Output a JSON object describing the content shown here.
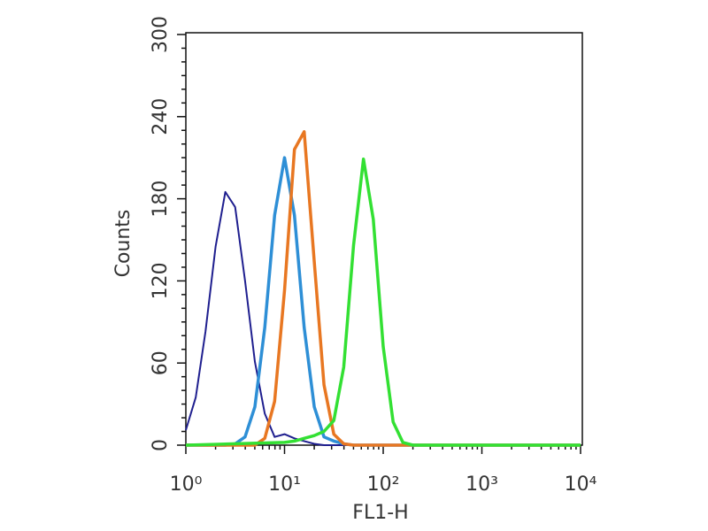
{
  "chart_data": {
    "type": "line",
    "xlabel": "FL1-H",
    "ylabel": "Counts",
    "xscale": "log",
    "xlim": [
      1,
      10000
    ],
    "xticks": [
      {
        "value": 1,
        "label": "10⁰"
      },
      {
        "value": 10,
        "label": "10¹"
      },
      {
        "value": 100,
        "label": "10²"
      },
      {
        "value": 1000,
        "label": "10³"
      },
      {
        "value": 10000,
        "label": "10⁴"
      }
    ],
    "ylim": [
      0,
      300
    ],
    "yticks": [
      0,
      60,
      120,
      180,
      240,
      300
    ],
    "series": [
      {
        "color": "#1f1f8f",
        "x": [
          1,
          1.26,
          1.58,
          2,
          2.51,
          3.16,
          3.98,
          5.01,
          6.31,
          7.94,
          10,
          12.6,
          15.8,
          20,
          25.1,
          10000
        ],
        "values": [
          11,
          35,
          83,
          145,
          185,
          174,
          120,
          61,
          23,
          6,
          8,
          5,
          3,
          1,
          0,
          0
        ]
      },
      {
        "color": "#2e8fd6",
        "x": [
          1,
          2.51,
          3.16,
          3.98,
          5.01,
          6.31,
          7.94,
          10,
          12.6,
          15.8,
          20,
          25.1,
          31.6,
          39.8,
          50.1,
          10000
        ],
        "values": [
          0,
          0,
          1,
          6,
          28,
          86,
          168,
          210,
          168,
          86,
          28,
          6,
          3,
          1,
          0,
          0
        ]
      },
      {
        "color": "#e87722",
        "x": [
          1,
          3.98,
          5.01,
          6.31,
          7.94,
          10,
          12.6,
          15.8,
          20,
          25.1,
          31.6,
          39.8,
          50.1,
          10000
        ],
        "values": [
          0,
          0,
          0,
          5,
          32,
          113,
          216,
          229,
          134,
          44,
          8,
          1,
          0,
          0
        ]
      },
      {
        "color": "#33e033",
        "x": [
          1,
          10,
          12.6,
          15.8,
          20,
          25.1,
          31.6,
          39.8,
          50.1,
          63.1,
          79.4,
          100,
          126,
          158,
          200,
          10000
        ],
        "values": [
          0,
          2,
          3,
          5,
          7,
          10,
          18,
          57,
          146,
          209,
          165,
          72,
          17,
          2,
          0,
          0
        ]
      }
    ]
  }
}
